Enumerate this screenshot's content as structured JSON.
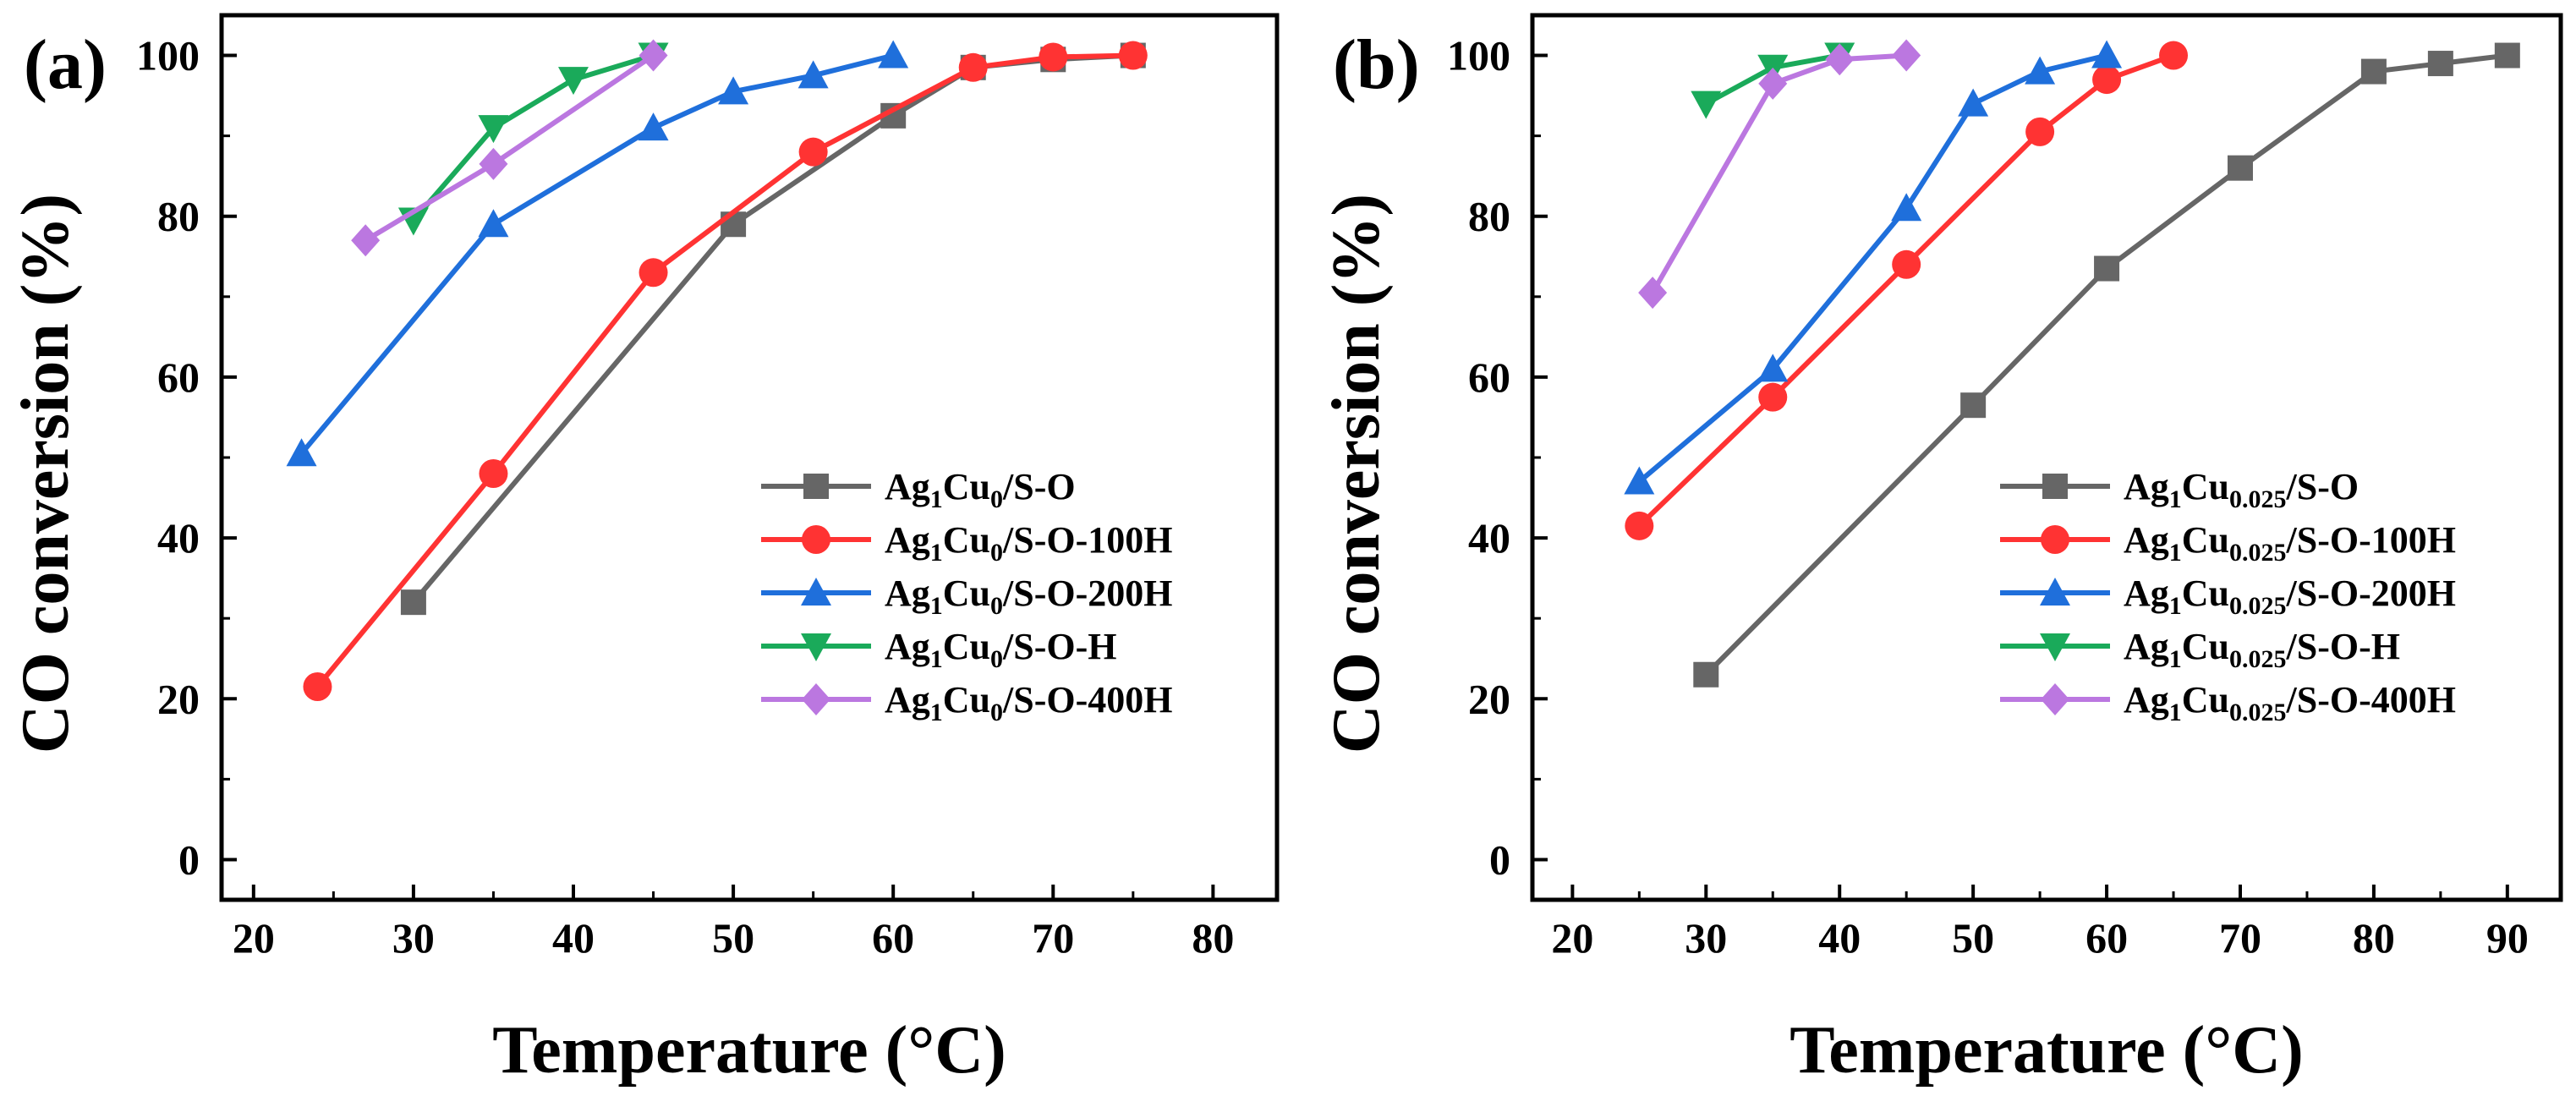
{
  "chart_data": [
    {
      "type": "line",
      "panel_label": "(a)",
      "xlabel": "Temperature (°C)",
      "ylabel": "CO conversion (%)",
      "xlim": [
        18,
        84
      ],
      "ylim": [
        -5,
        105
      ],
      "xticks": [
        20,
        30,
        40,
        50,
        60,
        70,
        80
      ],
      "yticks": [
        0,
        20,
        40,
        60,
        80,
        100
      ],
      "legend_position": "right",
      "series": [
        {
          "legend_main": "Ag",
          "legend_sub1": "1",
          "legend_mid": "Cu",
          "legend_sub2": "0",
          "legend_suffix": "/S-O",
          "color": "#666666",
          "marker": "square",
          "x": [
            30,
            50,
            60,
            65,
            70,
            75
          ],
          "y": [
            32,
            79,
            92.5,
            98.5,
            99.5,
            100
          ]
        },
        {
          "legend_main": "Ag",
          "legend_sub1": "1",
          "legend_mid": "Cu",
          "legend_sub2": "0",
          "legend_suffix": "/S-O-100H",
          "color": "#ff3333",
          "marker": "circle",
          "x": [
            24,
            35,
            45,
            55,
            65,
            70,
            75
          ],
          "y": [
            21.5,
            48,
            73,
            88,
            98.5,
            99.8,
            100
          ]
        },
        {
          "legend_main": "Ag",
          "legend_sub1": "1",
          "legend_mid": "Cu",
          "legend_sub2": "0",
          "legend_suffix": "/S-O-200H",
          "color": "#1f6fdb",
          "marker": "triangle-up",
          "x": [
            23,
            35,
            45,
            50,
            55,
            60
          ],
          "y": [
            50.5,
            79,
            91,
            95.5,
            97.5,
            100
          ]
        },
        {
          "legend_main": "Ag",
          "legend_sub1": "1",
          "legend_mid": "Cu",
          "legend_sub2": "0",
          "legend_suffix": "/S-O-H",
          "color": "#1aaa5a",
          "marker": "triangle-down",
          "x": [
            30,
            35,
            40,
            45
          ],
          "y": [
            79.5,
            91,
            97,
            100
          ]
        },
        {
          "legend_main": "Ag",
          "legend_sub1": "1",
          "legend_mid": "Cu",
          "legend_sub2": "0",
          "legend_suffix": "/S-O-400H",
          "color": "#bb77e0",
          "marker": "diamond",
          "x": [
            27,
            35,
            45
          ],
          "y": [
            77,
            86.5,
            100
          ]
        }
      ]
    },
    {
      "type": "line",
      "panel_label": "(b)",
      "xlabel": "Temperature (°C)",
      "ylabel": "CO conversion (%)",
      "xlim": [
        17,
        94
      ],
      "ylim": [
        -5,
        105
      ],
      "xticks": [
        20,
        30,
        40,
        50,
        60,
        70,
        80,
        90
      ],
      "yticks": [
        0,
        20,
        40,
        60,
        80,
        100
      ],
      "legend_position": "right",
      "series": [
        {
          "legend_main": "Ag",
          "legend_sub1": "1",
          "legend_mid": "Cu",
          "legend_sub2": "0.025",
          "legend_suffix": "/S-O",
          "color": "#666666",
          "marker": "square",
          "x": [
            30,
            50,
            60,
            70,
            80,
            85,
            90
          ],
          "y": [
            23,
            56.5,
            73.5,
            86,
            98,
            99,
            100
          ]
        },
        {
          "legend_main": "Ag",
          "legend_sub1": "1",
          "legend_mid": "Cu",
          "legend_sub2": "0.025",
          "legend_suffix": "/S-O-100H",
          "color": "#ff3333",
          "marker": "circle",
          "x": [
            25,
            35,
            45,
            55,
            60,
            65
          ],
          "y": [
            41.5,
            57.5,
            74,
            90.5,
            97,
            100
          ]
        },
        {
          "legend_main": "Ag",
          "legend_sub1": "1",
          "legend_mid": "Cu",
          "legend_sub2": "0.025",
          "legend_suffix": "/S-O-200H",
          "color": "#1f6fdb",
          "marker": "triangle-up",
          "x": [
            25,
            35,
            45,
            50,
            55,
            60
          ],
          "y": [
            47,
            61,
            81,
            94,
            98,
            100
          ]
        },
        {
          "legend_main": "Ag",
          "legend_sub1": "1",
          "legend_mid": "Cu",
          "legend_sub2": "0.025",
          "legend_suffix": "/S-O-H",
          "color": "#1aaa5a",
          "marker": "triangle-down",
          "x": [
            30,
            35,
            40
          ],
          "y": [
            94,
            98.5,
            100
          ]
        },
        {
          "legend_main": "Ag",
          "legend_sub1": "1",
          "legend_mid": "Cu",
          "legend_sub2": "0.025",
          "legend_suffix": "/S-O-400H",
          "color": "#bb77e0",
          "marker": "diamond",
          "x": [
            26,
            35,
            40,
            45
          ],
          "y": [
            70.5,
            96.5,
            99.5,
            100
          ]
        }
      ]
    }
  ]
}
